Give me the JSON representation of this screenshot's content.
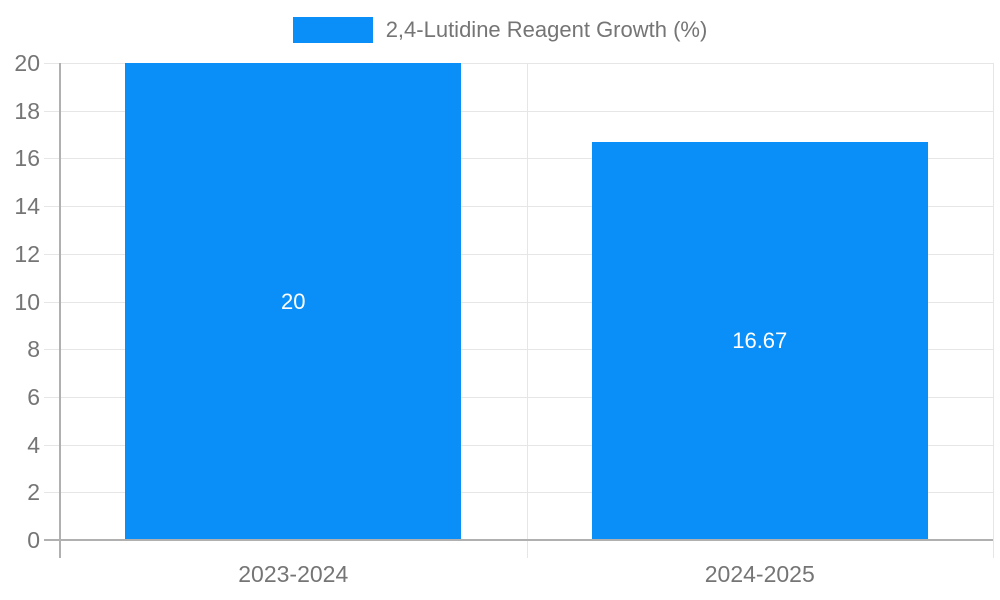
{
  "legend": {
    "label": "2,4-Lutidine Reagent Growth (%)"
  },
  "chart_data": {
    "type": "bar",
    "title": "2,4-Lutidine Reagent Growth (%)",
    "categories": [
      "2023-2024",
      "2024-2025"
    ],
    "series": [
      {
        "name": "2,4-Lutidine Reagent Growth (%)",
        "values": [
          20,
          16.67
        ],
        "labels": [
          "20",
          "16.67"
        ]
      }
    ],
    "xlabel": "",
    "ylabel": "",
    "ylim": [
      0,
      20
    ],
    "ytick_step": 2,
    "ytick_labels": [
      "0",
      "2",
      "4",
      "6",
      "8",
      "10",
      "12",
      "14",
      "16",
      "18",
      "20"
    ],
    "grid": true,
    "legend_position": "top-center",
    "colors": {
      "bar": "#0a8ff9",
      "grid": "#e6e6e6",
      "axis": "#b0b0b0",
      "tick_label": "#757575",
      "legend_text": "#757575",
      "bar_label": "#ffffff",
      "background": "#ffffff"
    }
  }
}
